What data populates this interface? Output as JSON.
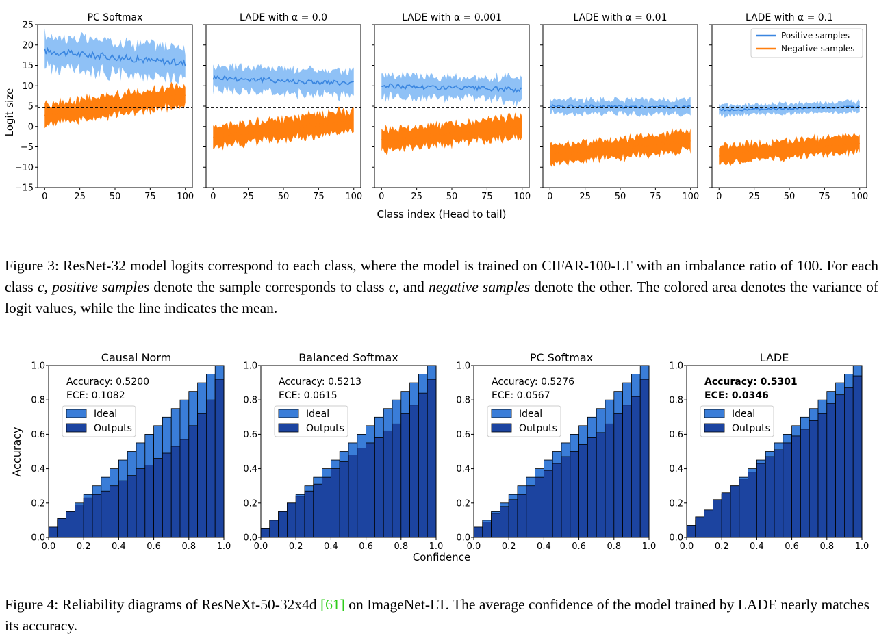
{
  "colors": {
    "positive": "#3a86e0",
    "positive_fill": "#7bb6f5",
    "negative": "#ff7f0e",
    "ideal": "#3a7dd8",
    "outputs": "#1c44a0",
    "cite": "#2ecc1a"
  },
  "figure3": {
    "xlabel": "Class index (Head to tail)",
    "ylabel": "Logit size",
    "xticks": [
      "0",
      "25",
      "50",
      "75",
      "100"
    ],
    "yticks": [
      "25",
      "20",
      "15",
      "10",
      "5",
      "0",
      "−5",
      "−10",
      "−15"
    ],
    "legend": {
      "positive": "Positive samples",
      "negative": "Negative samples"
    },
    "caption": {
      "a": "Figure 3: ResNet-32 model logits correspond to each class, where the model is trained on CIFAR-100-LT with an imbalance ratio of 100. For each class ",
      "c1": "c",
      "b": ", ",
      "pos": "positive samples",
      "c": " denote the sample corresponds to class ",
      "c2": "c",
      "d": ", and ",
      "neg": "negative samples",
      "e": " denote the other. The colored area denotes the variance of logit values, while the line indicates the mean."
    }
  },
  "figure4": {
    "xlabel": "Confidence",
    "ylabel": "Accuracy",
    "ticks": [
      "0.0",
      "0.2",
      "0.4",
      "0.6",
      "0.8",
      "1.0"
    ],
    "legend": {
      "ideal": "Ideal",
      "outputs": "Outputs"
    },
    "caption": {
      "a": "Figure 4: Reliability diagrams of ResNeXt-50-32x4d ",
      "cite": "[61]",
      "b": " on ImageNet-LT. The average confidence of the model trained by LADE nearly matches its accuracy."
    }
  },
  "chart_data": [
    {
      "type": "line",
      "title": "PC Softmax",
      "x": [
        0,
        100
      ],
      "xlim": [
        -5,
        105
      ],
      "ylim": [
        -15,
        25
      ],
      "dashed_line_y": 4.6,
      "series": [
        {
          "name": "Positive samples",
          "mean_start": 18.5,
          "mean_end": 15.5,
          "spread": 4.5
        },
        {
          "name": "Negative samples",
          "mean_start": 3.0,
          "mean_end": 7.5,
          "spread": 3.0
        }
      ]
    },
    {
      "type": "line",
      "title": "LADE with α = 0.0",
      "x": [
        0,
        100
      ],
      "xlim": [
        -5,
        105
      ],
      "ylim": [
        -15,
        25
      ],
      "dashed_line_y": 4.6,
      "series": [
        {
          "name": "Positive samples",
          "mean_start": 12.0,
          "mean_end": 10.5,
          "spread": 3.5
        },
        {
          "name": "Negative samples",
          "mean_start": -2.5,
          "mean_end": 1.5,
          "spread": 3.0
        }
      ]
    },
    {
      "type": "line",
      "title": "LADE with α = 0.001",
      "x": [
        0,
        100
      ],
      "xlim": [
        -5,
        105
      ],
      "ylim": [
        -15,
        25
      ],
      "dashed_line_y": 4.6,
      "series": [
        {
          "name": "Positive samples",
          "mean_start": 10.0,
          "mean_end": 9.0,
          "spread": 3.2
        },
        {
          "name": "Negative samples",
          "mean_start": -3.5,
          "mean_end": 0.0,
          "spread": 3.0
        }
      ]
    },
    {
      "type": "line",
      "title": "LADE with α = 0.01",
      "x": [
        0,
        100
      ],
      "xlim": [
        -5,
        105
      ],
      "ylim": [
        -15,
        25
      ],
      "dashed_line_y": 4.6,
      "series": [
        {
          "name": "Positive samples",
          "mean_start": 5.0,
          "mean_end": 4.8,
          "spread": 2.0
        },
        {
          "name": "Negative samples",
          "mean_start": -7.0,
          "mean_end": -3.5,
          "spread": 2.8
        }
      ]
    },
    {
      "type": "line",
      "title": "LADE with α = 0.1",
      "x": [
        0,
        100
      ],
      "xlim": [
        -5,
        105
      ],
      "ylim": [
        -15,
        25
      ],
      "dashed_line_y": 4.6,
      "series": [
        {
          "name": "Positive samples",
          "mean_start": 4.0,
          "mean_end": 4.8,
          "spread": 1.5
        },
        {
          "name": "Negative samples",
          "mean_start": -7.0,
          "mean_end": -4.0,
          "spread": 2.5
        }
      ]
    },
    {
      "type": "bar",
      "title": "Causal Norm",
      "accuracy_label": "Accuracy: 0.5200",
      "ece_label": "ECE: 0.1082",
      "bold": false,
      "bins": 20,
      "xlim": [
        0,
        1
      ],
      "ylim": [
        0,
        1
      ],
      "ideal": [
        0.05,
        0.1,
        0.15,
        0.2,
        0.25,
        0.3,
        0.35,
        0.4,
        0.45,
        0.5,
        0.55,
        0.6,
        0.65,
        0.7,
        0.75,
        0.8,
        0.85,
        0.9,
        0.95,
        1.0
      ],
      "outputs": [
        0.06,
        0.11,
        0.15,
        0.19,
        0.23,
        0.25,
        0.27,
        0.3,
        0.33,
        0.36,
        0.4,
        0.42,
        0.46,
        0.49,
        0.53,
        0.57,
        0.65,
        0.72,
        0.8,
        0.92
      ]
    },
    {
      "type": "bar",
      "title": "Balanced Softmax",
      "accuracy_label": "Accuracy: 0.5213",
      "ece_label": "ECE: 0.0615",
      "bold": false,
      "bins": 20,
      "xlim": [
        0,
        1
      ],
      "ylim": [
        0,
        1
      ],
      "ideal": [
        0.05,
        0.1,
        0.15,
        0.2,
        0.25,
        0.3,
        0.35,
        0.4,
        0.45,
        0.5,
        0.55,
        0.6,
        0.65,
        0.7,
        0.75,
        0.8,
        0.85,
        0.9,
        0.95,
        1.0
      ],
      "outputs": [
        0.05,
        0.1,
        0.15,
        0.2,
        0.24,
        0.27,
        0.31,
        0.35,
        0.4,
        0.44,
        0.48,
        0.52,
        0.55,
        0.58,
        0.62,
        0.66,
        0.72,
        0.77,
        0.84,
        0.92
      ]
    },
    {
      "type": "bar",
      "title": "PC Softmax",
      "accuracy_label": "Accuracy: 0.5276",
      "ece_label": "ECE: 0.0567",
      "bold": false,
      "bins": 20,
      "xlim": [
        0,
        1
      ],
      "ylim": [
        0,
        1
      ],
      "ideal": [
        0.05,
        0.1,
        0.15,
        0.2,
        0.25,
        0.3,
        0.35,
        0.4,
        0.45,
        0.5,
        0.55,
        0.6,
        0.65,
        0.7,
        0.75,
        0.8,
        0.85,
        0.9,
        0.95,
        1.0
      ],
      "outputs": [
        0.06,
        0.09,
        0.14,
        0.18,
        0.22,
        0.25,
        0.3,
        0.35,
        0.39,
        0.43,
        0.47,
        0.5,
        0.54,
        0.58,
        0.61,
        0.66,
        0.72,
        0.77,
        0.82,
        0.92
      ]
    },
    {
      "type": "bar",
      "title": "LADE",
      "accuracy_label": "Accuracy: 0.5301",
      "ece_label": "ECE: 0.0346",
      "bold": true,
      "bins": 20,
      "xlim": [
        0,
        1
      ],
      "ylim": [
        0,
        1
      ],
      "ideal": [
        0.05,
        0.1,
        0.15,
        0.2,
        0.25,
        0.3,
        0.35,
        0.4,
        0.45,
        0.5,
        0.55,
        0.6,
        0.65,
        0.7,
        0.75,
        0.8,
        0.85,
        0.9,
        0.95,
        1.0
      ],
      "outputs": [
        0.07,
        0.12,
        0.16,
        0.22,
        0.26,
        0.3,
        0.34,
        0.38,
        0.43,
        0.47,
        0.51,
        0.55,
        0.59,
        0.63,
        0.68,
        0.72,
        0.78,
        0.83,
        0.87,
        0.94
      ]
    }
  ]
}
